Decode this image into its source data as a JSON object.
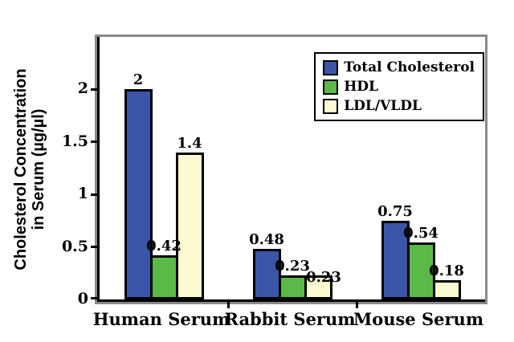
{
  "chart_data": {
    "type": "bar",
    "title": "",
    "categories": [
      "Human Serum",
      "Rabbit Serum",
      "Mouse Serum"
    ],
    "series": [
      {
        "name": "Total Cholesterol",
        "color": "#3b55a6",
        "values": [
          2,
          0.48,
          0.75
        ],
        "labels": [
          "2",
          "0.48",
          "0.75"
        ]
      },
      {
        "name": "HDL",
        "color": "#5bba47",
        "values": [
          0.42,
          0.23,
          0.54
        ],
        "labels": [
          "0.42",
          "0.23",
          "0.54"
        ]
      },
      {
        "name": "LDL/VLDL",
        "color": "#fbfad1",
        "values": [
          1.4,
          0.23,
          0.18
        ],
        "labels": [
          "1.4",
          "0.23",
          "0.18"
        ]
      }
    ],
    "ylabel_line1": "Cholesterol Concentration",
    "ylabel_line2": "in Serum (µg/µl)",
    "xlabel": "",
    "yticks": [
      {
        "value": 0,
        "label": "0"
      },
      {
        "value": 0.5,
        "label": "0.5"
      },
      {
        "value": 1,
        "label": "1"
      },
      {
        "value": 1.5,
        "label": "1.5"
      },
      {
        "value": 2,
        "label": "2"
      }
    ],
    "ylim": [
      0,
      2.5
    ],
    "grid": false,
    "legend_position": "top-right",
    "colors": {
      "axis": "#000000",
      "frame_border": "#8a8a8a",
      "bar_border": "#000000",
      "background": "#ffffff"
    }
  }
}
